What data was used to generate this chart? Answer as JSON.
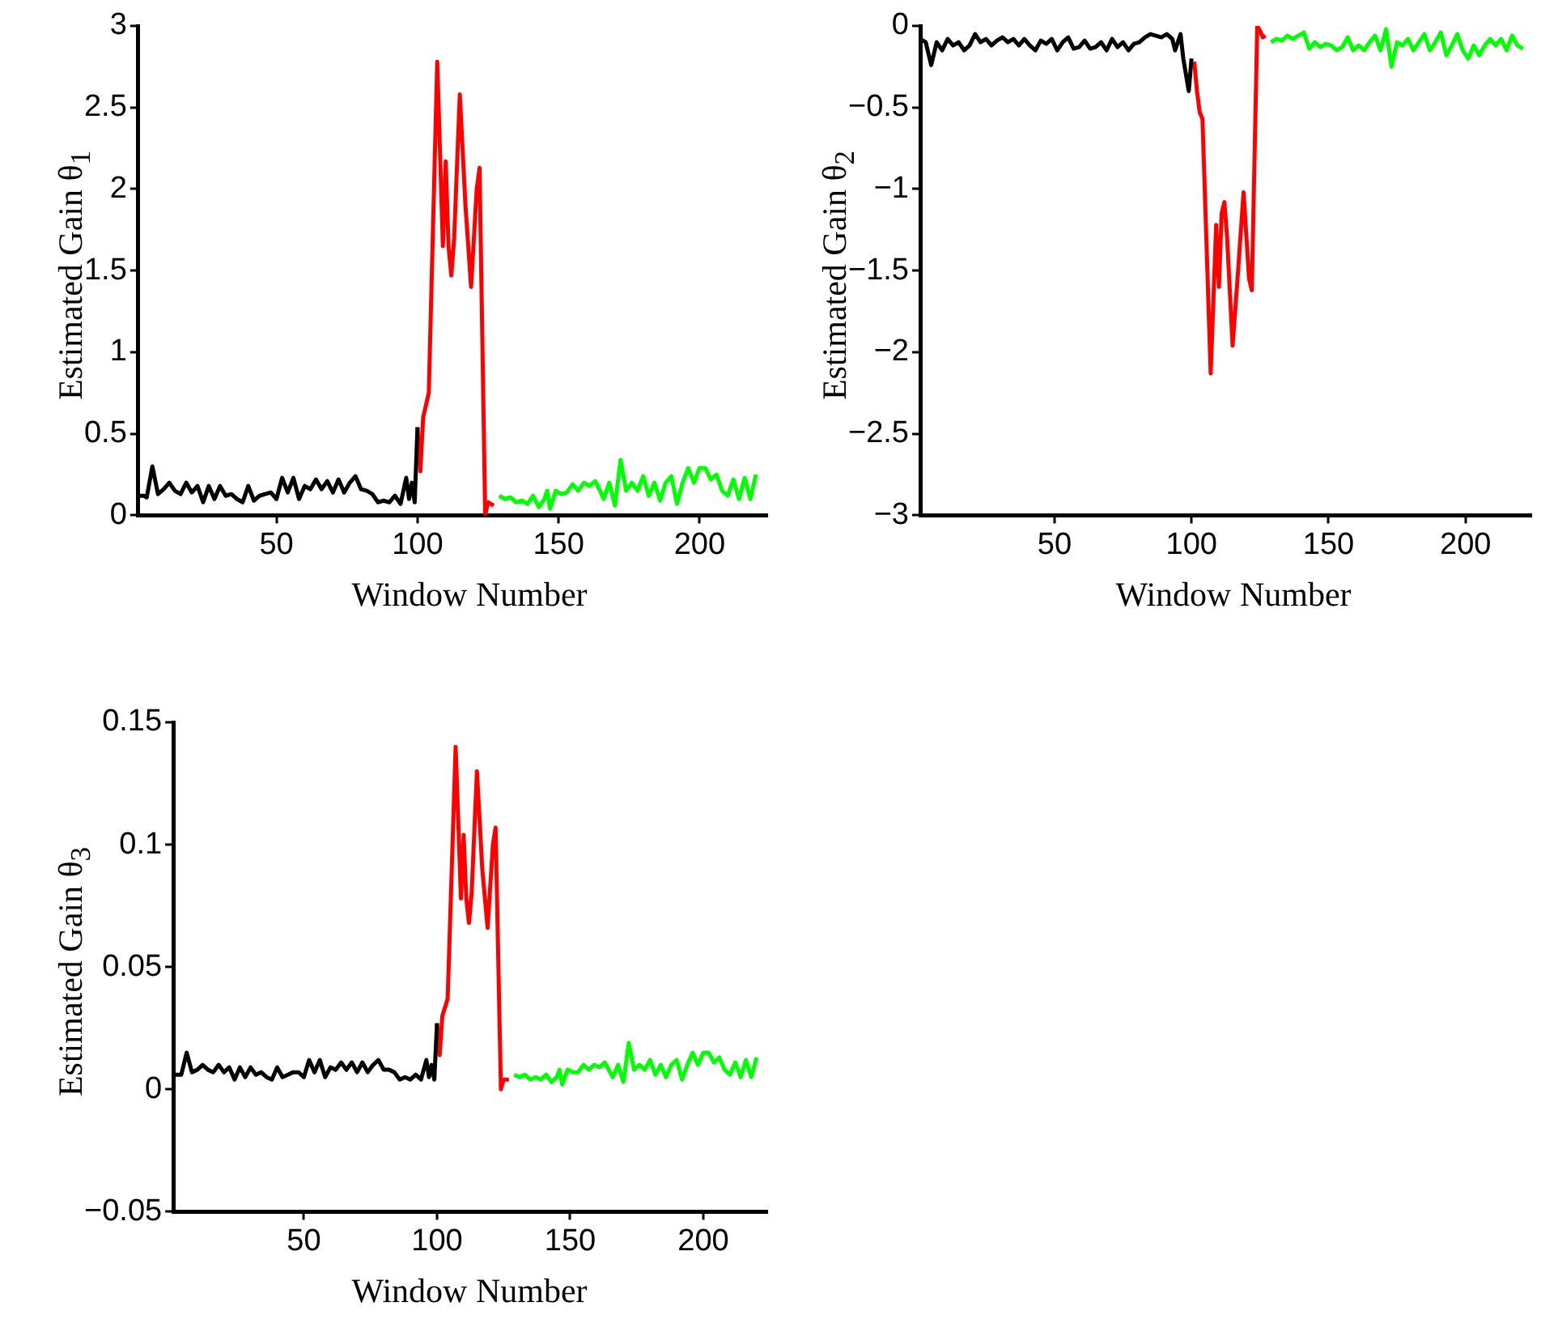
{
  "chart_data": [
    {
      "type": "line",
      "xlabel": "Window Number",
      "ylabel": "Estimated Gain θ$_{1}$",
      "xlim": [
        1,
        224
      ],
      "xticks": [
        50,
        100,
        150,
        200
      ],
      "ylim": [
        0,
        3
      ],
      "yticks": [
        0,
        0.5,
        1,
        1.5,
        2,
        2.5,
        3
      ],
      "marker": "none",
      "series": [
        {
          "color": "#000000",
          "x": [
            1,
            3,
            4,
            6,
            8,
            10,
            12,
            14,
            16,
            18,
            20,
            22,
            24,
            26,
            28,
            30,
            32,
            34,
            36,
            38,
            40,
            42,
            44,
            46,
            48,
            50,
            52,
            54,
            56,
            58,
            60,
            62,
            64,
            66,
            68,
            70,
            72,
            74,
            76,
            78,
            80,
            82,
            84,
            86,
            88,
            90,
            92,
            94,
            96,
            97,
            98,
            99,
            100
          ],
          "values": [
            0.12,
            0.12,
            0.11,
            0.3,
            0.13,
            0.16,
            0.2,
            0.15,
            0.13,
            0.2,
            0.14,
            0.18,
            0.08,
            0.18,
            0.1,
            0.18,
            0.12,
            0.13,
            0.1,
            0.08,
            0.18,
            0.09,
            0.12,
            0.13,
            0.14,
            0.1,
            0.23,
            0.14,
            0.23,
            0.1,
            0.18,
            0.16,
            0.22,
            0.16,
            0.21,
            0.14,
            0.22,
            0.14,
            0.2,
            0.24,
            0.16,
            0.15,
            0.13,
            0.08,
            0.09,
            0.08,
            0.12,
            0.07,
            0.23,
            0.1,
            0.2,
            0.08,
            0.54
          ]
        },
        {
          "color": "#ff0000",
          "x": [
            100,
            101,
            102,
            104,
            107,
            109,
            110,
            111,
            112,
            113,
            115,
            117,
            119,
            121,
            122,
            124,
            125,
            126,
            127
          ],
          "values": [
            0.54,
            0.27,
            0.6,
            0.75,
            2.78,
            1.65,
            2.17,
            1.65,
            1.47,
            1.7,
            2.58,
            1.9,
            1.4,
            2.0,
            2.13,
            0.0,
            0.08,
            0.07,
            0.06
          ]
        },
        {
          "color": "#00ff00",
          "x": [
            129,
            131,
            133,
            135,
            137,
            139,
            141,
            143,
            145,
            146,
            147,
            149,
            151,
            153,
            155,
            157,
            159,
            161,
            163,
            165,
            166,
            168,
            170,
            172,
            174,
            176,
            178,
            180,
            182,
            184,
            186,
            188,
            190,
            192,
            194,
            196,
            198,
            200,
            202,
            204,
            206,
            208,
            210,
            212,
            214,
            216,
            218,
            220
          ],
          "values": [
            0.12,
            0.1,
            0.11,
            0.08,
            0.09,
            0.07,
            0.12,
            0.05,
            0.1,
            0.15,
            0.04,
            0.15,
            0.13,
            0.14,
            0.19,
            0.15,
            0.2,
            0.18,
            0.21,
            0.14,
            0.1,
            0.2,
            0.06,
            0.34,
            0.15,
            0.2,
            0.15,
            0.24,
            0.12,
            0.2,
            0.09,
            0.2,
            0.24,
            0.07,
            0.2,
            0.29,
            0.2,
            0.29,
            0.29,
            0.22,
            0.25,
            0.15,
            0.12,
            0.22,
            0.1,
            0.23,
            0.1,
            0.25
          ]
        }
      ]
    },
    {
      "type": "line",
      "xlabel": "Window Number",
      "ylabel": "Estimated Gain θ$_{2}$",
      "xlim": [
        1,
        224
      ],
      "xticks": [
        50,
        100,
        150,
        200
      ],
      "ylim": [
        -3,
        0
      ],
      "yticks": [
        -3,
        -2.5,
        -2,
        -1.5,
        -1,
        -0.5,
        0
      ],
      "marker": "none",
      "series": [
        {
          "color": "#000000",
          "x": [
            1,
            3,
            5,
            7,
            9,
            11,
            13,
            15,
            17,
            19,
            21,
            23,
            25,
            27,
            29,
            31,
            33,
            35,
            37,
            39,
            41,
            43,
            45,
            47,
            49,
            51,
            53,
            55,
            57,
            59,
            61,
            63,
            65,
            67,
            69,
            71,
            73,
            75,
            77,
            79,
            81,
            83,
            85,
            87,
            89,
            91,
            93,
            94,
            96,
            97,
            98,
            99,
            100
          ],
          "values": [
            -0.08,
            -0.1,
            -0.24,
            -0.1,
            -0.15,
            -0.08,
            -0.12,
            -0.1,
            -0.15,
            -0.12,
            -0.05,
            -0.1,
            -0.08,
            -0.12,
            -0.09,
            -0.07,
            -0.1,
            -0.08,
            -0.12,
            -0.08,
            -0.12,
            -0.15,
            -0.09,
            -0.11,
            -0.08,
            -0.15,
            -0.1,
            -0.07,
            -0.14,
            -0.13,
            -0.09,
            -0.14,
            -0.13,
            -0.1,
            -0.15,
            -0.08,
            -0.13,
            -0.1,
            -0.15,
            -0.11,
            -0.1,
            -0.07,
            -0.05,
            -0.06,
            -0.07,
            -0.05,
            -0.08,
            -0.15,
            -0.05,
            -0.2,
            -0.3,
            -0.4,
            -0.2
          ]
        },
        {
          "color": "#ff0000",
          "x": [
            101,
            102,
            103,
            104,
            107,
            109,
            110,
            111,
            112,
            113,
            115,
            117,
            119,
            121,
            122,
            124,
            125,
            126,
            127
          ],
          "values": [
            -0.22,
            -0.4,
            -0.53,
            -0.57,
            -2.13,
            -1.22,
            -1.6,
            -1.15,
            -1.08,
            -1.3,
            -1.96,
            -1.5,
            -1.02,
            -1.55,
            -1.62,
            0.0,
            -0.03,
            -0.07,
            -0.06
          ]
        },
        {
          "color": "#00ff00",
          "x": [
            129,
            131,
            133,
            135,
            137,
            139,
            141,
            143,
            145,
            147,
            149,
            151,
            153,
            155,
            157,
            159,
            161,
            163,
            165,
            167,
            169,
            171,
            173,
            175,
            177,
            179,
            181,
            183,
            185,
            187,
            189,
            191,
            193,
            195,
            197,
            199,
            201,
            203,
            205,
            207,
            209,
            211,
            213,
            215,
            217,
            219,
            221
          ],
          "values": [
            -0.1,
            -0.08,
            -0.09,
            -0.06,
            -0.08,
            -0.06,
            -0.04,
            -0.14,
            -0.1,
            -0.13,
            -0.11,
            -0.12,
            -0.15,
            -0.13,
            -0.07,
            -0.15,
            -0.12,
            -0.15,
            -0.1,
            -0.06,
            -0.15,
            -0.02,
            -0.25,
            -0.1,
            -0.12,
            -0.08,
            -0.15,
            -0.1,
            -0.05,
            -0.15,
            -0.1,
            -0.04,
            -0.18,
            -0.12,
            -0.05,
            -0.15,
            -0.2,
            -0.12,
            -0.18,
            -0.12,
            -0.08,
            -0.12,
            -0.08,
            -0.15,
            -0.06,
            -0.12,
            -0.14
          ]
        }
      ]
    },
    {
      "type": "line",
      "xlabel": "Window Number",
      "ylabel": "Estimated Gain θ$_{3}$",
      "xlim": [
        1,
        224
      ],
      "xticks": [
        50,
        100,
        150,
        200
      ],
      "ylim": [
        -0.05,
        0.15
      ],
      "yticks": [
        -0.05,
        0,
        0.05,
        0.1,
        0.15
      ],
      "marker": "none",
      "series": [
        {
          "color": "#000000",
          "x": [
            1,
            3,
            4,
            6,
            8,
            10,
            12,
            14,
            16,
            18,
            20,
            22,
            24,
            26,
            28,
            30,
            32,
            34,
            36,
            38,
            40,
            42,
            44,
            46,
            48,
            50,
            52,
            54,
            56,
            58,
            60,
            62,
            64,
            66,
            68,
            70,
            72,
            74,
            76,
            78,
            80,
            82,
            84,
            86,
            88,
            90,
            92,
            94,
            96,
            97,
            98,
            99,
            100
          ],
          "values": [
            0.006,
            0.006,
            0.006,
            0.015,
            0.007,
            0.008,
            0.01,
            0.008,
            0.007,
            0.01,
            0.007,
            0.009,
            0.004,
            0.009,
            0.005,
            0.009,
            0.006,
            0.007,
            0.005,
            0.004,
            0.009,
            0.005,
            0.006,
            0.007,
            0.007,
            0.005,
            0.012,
            0.007,
            0.012,
            0.005,
            0.009,
            0.008,
            0.011,
            0.008,
            0.011,
            0.007,
            0.011,
            0.007,
            0.01,
            0.012,
            0.008,
            0.008,
            0.007,
            0.004,
            0.005,
            0.004,
            0.006,
            0.004,
            0.012,
            0.005,
            0.01,
            0.004,
            0.027
          ]
        },
        {
          "color": "#ff0000",
          "x": [
            100,
            101,
            102,
            104,
            107,
            109,
            110,
            111,
            112,
            113,
            115,
            117,
            119,
            121,
            122,
            124,
            125,
            126,
            127
          ],
          "values": [
            0.027,
            0.014,
            0.03,
            0.037,
            0.14,
            0.078,
            0.104,
            0.078,
            0.068,
            0.08,
            0.13,
            0.09,
            0.066,
            0.1,
            0.107,
            0.0,
            0.004,
            0.004,
            0.004
          ]
        },
        {
          "color": "#00ff00",
          "x": [
            129,
            131,
            133,
            135,
            137,
            139,
            141,
            143,
            145,
            146,
            147,
            149,
            151,
            153,
            155,
            157,
            159,
            161,
            163,
            165,
            166,
            168,
            170,
            172,
            174,
            176,
            178,
            180,
            182,
            184,
            186,
            188,
            190,
            192,
            194,
            196,
            198,
            200,
            202,
            204,
            206,
            208,
            210,
            212,
            214,
            216,
            218,
            220
          ],
          "values": [
            0.006,
            0.005,
            0.006,
            0.004,
            0.005,
            0.004,
            0.006,
            0.003,
            0.005,
            0.008,
            0.002,
            0.008,
            0.007,
            0.007,
            0.01,
            0.008,
            0.01,
            0.009,
            0.011,
            0.007,
            0.005,
            0.01,
            0.003,
            0.019,
            0.008,
            0.01,
            0.008,
            0.012,
            0.006,
            0.01,
            0.005,
            0.01,
            0.012,
            0.004,
            0.01,
            0.015,
            0.01,
            0.015,
            0.015,
            0.011,
            0.013,
            0.008,
            0.006,
            0.011,
            0.005,
            0.012,
            0.005,
            0.013
          ]
        }
      ]
    }
  ]
}
